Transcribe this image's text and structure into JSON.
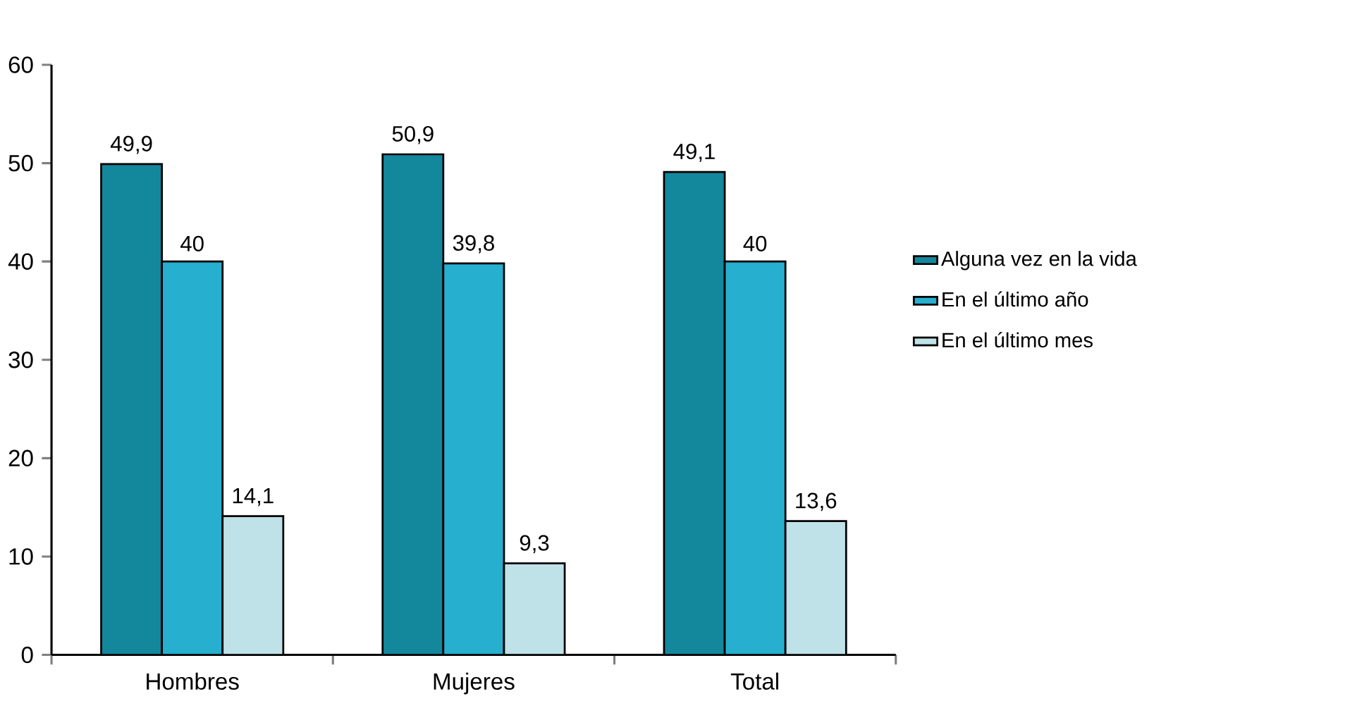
{
  "chart_data": {
    "type": "bar",
    "categories": [
      "Hombres",
      "Mujeres",
      "Total"
    ],
    "series": [
      {
        "name": "Alguna vez en la vida",
        "color": "#13879c",
        "values": [
          49.9,
          50.9,
          49.1
        ],
        "value_labels": [
          "49,9",
          "50,9",
          "49,1"
        ]
      },
      {
        "name": "En el último año",
        "color": "#27afd0",
        "values": [
          40,
          39.8,
          40
        ],
        "value_labels": [
          "40",
          "39,8",
          "40"
        ]
      },
      {
        "name": "En el último mes",
        "color": "#bfe1e8",
        "values": [
          14.1,
          9.3,
          13.6
        ],
        "value_labels": [
          "14,1",
          "9,3",
          "13,6"
        ]
      }
    ],
    "ylim": [
      0,
      60
    ],
    "yticks": [
      0,
      10,
      20,
      30,
      40,
      50,
      60
    ],
    "legend": "right",
    "grid": false
  }
}
